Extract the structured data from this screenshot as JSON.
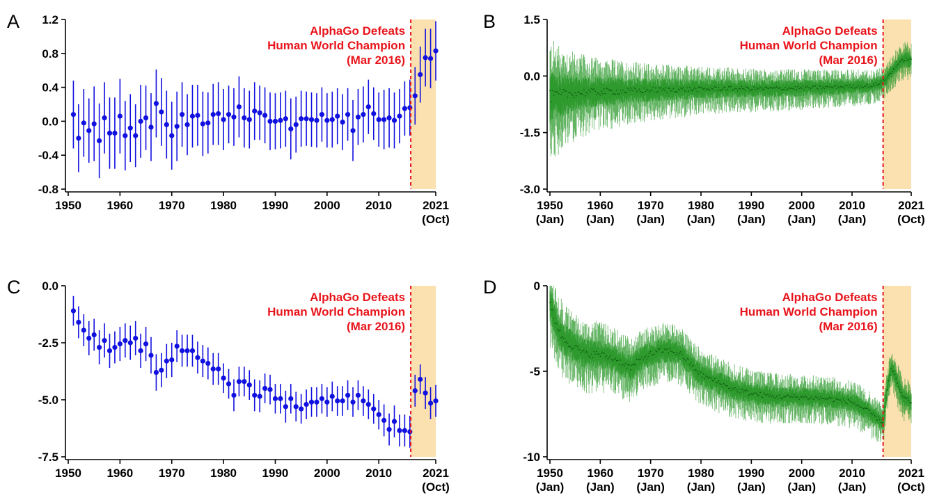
{
  "figure": {
    "colors": {
      "errorbar_blue": "#1010e0",
      "monthly_green": "#2e9a2e",
      "monthly_dark_green": "#0d5f0d",
      "event_line_red": "#e8141b",
      "shade_fill": "#fbe0b0",
      "annotation_red": "#e8141b"
    }
  },
  "chart_data": [
    {
      "panel": "A",
      "type": "scatter",
      "style": "points_with_error_bars",
      "annotation": [
        "AlphaGo Defeats",
        "Human World Champion",
        "(Mar 2016)"
      ],
      "event_x": 2016.17,
      "shaded_region": [
        2016.17,
        2021.0
      ],
      "xlim": [
        1950,
        2021.0
      ],
      "ylim": [
        -0.8,
        1.2
      ],
      "xticks": [
        1950,
        1960,
        1970,
        1980,
        1990,
        2000,
        2010,
        2021
      ],
      "xtick_labels": [
        [
          "1950"
        ],
        [
          "1960"
        ],
        [
          "1970"
        ],
        [
          "1980"
        ],
        [
          "1990"
        ],
        [
          "2000"
        ],
        [
          "2010"
        ],
        [
          "2021",
          "(Oct)"
        ]
      ],
      "yticks": [
        -0.8,
        -0.4,
        0.0,
        0.4,
        0.8,
        1.2
      ],
      "ytick_labels": [
        "-0.8",
        "-0.4",
        "0.0",
        "0.4",
        "0.8",
        "1.2"
      ],
      "x": [
        1951,
        1952,
        1953,
        1954,
        1955,
        1956,
        1957,
        1958,
        1959,
        1960,
        1961,
        1962,
        1963,
        1964,
        1965,
        1966,
        1967,
        1968,
        1969,
        1970,
        1971,
        1972,
        1973,
        1974,
        1975,
        1976,
        1977,
        1978,
        1979,
        1980,
        1981,
        1982,
        1983,
        1984,
        1985,
        1986,
        1987,
        1988,
        1989,
        1990,
        1991,
        1992,
        1993,
        1994,
        1995,
        1996,
        1997,
        1998,
        1999,
        2000,
        2001,
        2002,
        2003,
        2004,
        2005,
        2006,
        2007,
        2008,
        2009,
        2010,
        2011,
        2012,
        2013,
        2014,
        2015,
        2016,
        2017,
        2018,
        2019,
        2020,
        2021
      ],
      "y": [
        0.08,
        -0.2,
        -0.02,
        -0.11,
        -0.03,
        -0.23,
        0.04,
        -0.14,
        -0.14,
        0.06,
        -0.17,
        -0.08,
        -0.17,
        0.0,
        0.04,
        -0.07,
        0.21,
        0.11,
        -0.04,
        -0.17,
        -0.06,
        0.08,
        -0.04,
        0.06,
        0.07,
        -0.03,
        -0.02,
        0.08,
        0.09,
        0.02,
        0.08,
        0.05,
        0.17,
        0.04,
        0.02,
        0.12,
        0.1,
        0.07,
        0.0,
        0.0,
        0.01,
        0.03,
        -0.09,
        -0.04,
        0.03,
        0.03,
        0.02,
        0.01,
        0.08,
        0.01,
        0.02,
        0.06,
        -0.01,
        0.08,
        -0.11,
        0.05,
        0.08,
        0.17,
        0.09,
        0.02,
        0.02,
        0.04,
        0.01,
        0.06,
        0.15,
        0.16,
        0.3,
        0.55,
        0.75,
        0.74,
        0.83
      ],
      "err": [
        0.4,
        0.4,
        0.4,
        0.38,
        0.44,
        0.44,
        0.42,
        0.42,
        0.42,
        0.44,
        0.41,
        0.4,
        0.37,
        0.43,
        0.38,
        0.4,
        0.4,
        0.4,
        0.4,
        0.4,
        0.41,
        0.38,
        0.36,
        0.37,
        0.36,
        0.38,
        0.36,
        0.36,
        0.37,
        0.36,
        0.34,
        0.34,
        0.36,
        0.35,
        0.34,
        0.34,
        0.32,
        0.33,
        0.34,
        0.33,
        0.33,
        0.33,
        0.36,
        0.33,
        0.33,
        0.32,
        0.32,
        0.32,
        0.32,
        0.32,
        0.33,
        0.33,
        0.33,
        0.31,
        0.36,
        0.33,
        0.33,
        0.32,
        0.31,
        0.32,
        0.35,
        0.35,
        0.33,
        0.32,
        0.32,
        0.33,
        0.34,
        0.33,
        0.34,
        0.35,
        0.35
      ]
    },
    {
      "panel": "B",
      "type": "line",
      "style": "monthly_noisy_band",
      "annotation": [
        "AlphaGo Defeats",
        "Human World Champion",
        "(Mar 2016)"
      ],
      "event_x": 2016.17,
      "shaded_region": [
        2016.17,
        2021.75
      ],
      "xlim": [
        1950,
        2021.75
      ],
      "ylim": [
        -3.0,
        1.5
      ],
      "xticks": [
        1950,
        1960,
        1970,
        1980,
        1990,
        2000,
        2010,
        2021.75
      ],
      "xtick_labels": [
        [
          "1950",
          "(Jan)"
        ],
        [
          "1960",
          "(Jan)"
        ],
        [
          "1970",
          "(Jan)"
        ],
        [
          "1980",
          "(Jan)"
        ],
        [
          "1990",
          "(Jan)"
        ],
        [
          "2000",
          "(Jan)"
        ],
        [
          "2010",
          "(Jan)"
        ],
        [
          "2021",
          "(Oct)"
        ]
      ],
      "yticks": [
        -3.0,
        -1.5,
        0.0,
        1.5
      ],
      "ytick_labels": [
        "-3.0",
        "-1.5",
        "0.0",
        "1.5"
      ],
      "trend_x": [
        1950,
        1952,
        1955,
        1960,
        1965,
        1970,
        1975,
        1980,
        1985,
        1990,
        1995,
        2000,
        2005,
        2010,
        2014,
        2016.2,
        2017.5,
        2019,
        2020.5,
        2021.75
      ],
      "trend_y": [
        -0.55,
        -0.5,
        -0.45,
        -0.42,
        -0.4,
        -0.38,
        -0.36,
        -0.35,
        -0.33,
        -0.34,
        -0.33,
        -0.32,
        -0.3,
        -0.28,
        -0.26,
        -0.15,
        0.05,
        0.3,
        0.45,
        0.42
      ],
      "spread_x": [
        1950,
        1955,
        1960,
        1970,
        1980,
        1990,
        2000,
        2010,
        2016,
        2021.75
      ],
      "spread_y": [
        1.3,
        0.9,
        0.75,
        0.6,
        0.5,
        0.45,
        0.42,
        0.38,
        0.35,
        0.4
      ]
    },
    {
      "panel": "C",
      "type": "scatter",
      "style": "points_with_error_bars",
      "annotation": [
        "AlphaGo Defeats",
        "Human World Champion",
        "(Mar 2016)"
      ],
      "event_x": 2016.17,
      "shaded_region": [
        2016.17,
        2021.0
      ],
      "xlim": [
        1950,
        2021.0
      ],
      "ylim": [
        -7.5,
        0.0
      ],
      "xticks": [
        1950,
        1960,
        1970,
        1980,
        1990,
        2000,
        2010,
        2021
      ],
      "xtick_labels": [
        [
          "1950"
        ],
        [
          "1960"
        ],
        [
          "1970"
        ],
        [
          "1980"
        ],
        [
          "1990"
        ],
        [
          "2000"
        ],
        [
          "2010"
        ],
        [
          "2021",
          "(Oct)"
        ]
      ],
      "yticks": [
        -7.5,
        -5.0,
        -2.5,
        0.0
      ],
      "ytick_labels": [
        "-7.5",
        "-5.0",
        "-2.5",
        "0.0"
      ],
      "x": [
        1951,
        1952,
        1953,
        1954,
        1955,
        1956,
        1957,
        1958,
        1959,
        1960,
        1961,
        1962,
        1963,
        1964,
        1965,
        1966,
        1967,
        1968,
        1969,
        1970,
        1971,
        1972,
        1973,
        1974,
        1975,
        1976,
        1977,
        1978,
        1979,
        1980,
        1981,
        1982,
        1983,
        1984,
        1985,
        1986,
        1987,
        1988,
        1989,
        1990,
        1991,
        1992,
        1993,
        1994,
        1995,
        1996,
        1997,
        1998,
        1999,
        2000,
        2001,
        2002,
        2003,
        2004,
        2005,
        2006,
        2007,
        2008,
        2009,
        2010,
        2011,
        2012,
        2013,
        2014,
        2015,
        2016,
        2017,
        2018,
        2019,
        2020,
        2021
      ],
      "y": [
        -1.1,
        -1.6,
        -1.95,
        -2.3,
        -2.15,
        -2.7,
        -2.4,
        -2.85,
        -2.7,
        -2.55,
        -2.4,
        -2.5,
        -2.3,
        -2.85,
        -2.55,
        -3.05,
        -3.8,
        -3.7,
        -3.3,
        -3.25,
        -2.65,
        -2.85,
        -2.85,
        -2.85,
        -3.15,
        -3.3,
        -3.4,
        -3.65,
        -3.65,
        -4.05,
        -4.3,
        -4.8,
        -4.2,
        -4.2,
        -4.35,
        -4.8,
        -4.85,
        -4.5,
        -4.55,
        -4.95,
        -4.95,
        -5.3,
        -4.95,
        -5.3,
        -5.4,
        -5.2,
        -5.1,
        -5.1,
        -4.95,
        -5.1,
        -4.85,
        -5.05,
        -5.05,
        -4.8,
        -5.1,
        -4.8,
        -5.05,
        -5.2,
        -5.4,
        -5.65,
        -5.9,
        -6.3,
        -5.95,
        -6.35,
        -6.35,
        -6.4,
        -4.6,
        -4.1,
        -4.7,
        -5.15,
        -5.05
      ],
      "err": [
        0.65,
        0.7,
        0.7,
        0.75,
        0.7,
        0.75,
        0.75,
        0.75,
        0.7,
        0.75,
        0.75,
        0.75,
        0.75,
        0.75,
        0.75,
        0.8,
        0.8,
        0.75,
        0.75,
        0.75,
        0.7,
        0.7,
        0.7,
        0.7,
        0.7,
        0.7,
        0.7,
        0.7,
        0.7,
        0.65,
        0.65,
        0.7,
        0.65,
        0.65,
        0.65,
        0.7,
        0.7,
        0.65,
        0.65,
        0.65,
        0.65,
        0.7,
        0.65,
        0.65,
        0.65,
        0.65,
        0.65,
        0.65,
        0.65,
        0.65,
        0.65,
        0.65,
        0.65,
        0.65,
        0.65,
        0.65,
        0.65,
        0.65,
        0.65,
        0.65,
        0.7,
        0.7,
        0.7,
        0.7,
        0.7,
        0.7,
        0.7,
        0.65,
        0.7,
        0.7,
        0.7
      ]
    },
    {
      "panel": "D",
      "type": "line",
      "style": "monthly_noisy_band",
      "annotation": [
        "AlphaGo Defeats",
        "Human World Champion",
        "(Mar 2016)"
      ],
      "event_x": 2016.17,
      "shaded_region": [
        2016.17,
        2021.75
      ],
      "xlim": [
        1950,
        2021.75
      ],
      "ylim": [
        -10,
        0
      ],
      "xticks": [
        1950,
        1960,
        1970,
        1980,
        1990,
        2000,
        2010,
        2021.75
      ],
      "xtick_labels": [
        [
          "1950",
          "(Jan)"
        ],
        [
          "1960",
          "(Jan)"
        ],
        [
          "1970",
          "(Jan)"
        ],
        [
          "1980",
          "(Jan)"
        ],
        [
          "1990",
          "(Jan)"
        ],
        [
          "2000",
          "(Jan)"
        ],
        [
          "2010",
          "(Jan)"
        ],
        [
          "2021",
          "(Oct)"
        ]
      ],
      "yticks": [
        -10,
        -5,
        0
      ],
      "ytick_labels": [
        "-10",
        "-5",
        "0"
      ],
      "trend_x": [
        1950,
        1951,
        1952,
        1953,
        1955,
        1957,
        1960,
        1963,
        1966,
        1968,
        1970,
        1972,
        1974,
        1976,
        1978,
        1980,
        1983,
        1986,
        1990,
        1995,
        2000,
        2005,
        2010,
        2013,
        2016.2,
        2017,
        2017.8,
        2018.8,
        2020,
        2021.75
      ],
      "trend_y": [
        -1.0,
        -2.0,
        -2.8,
        -3.2,
        -3.6,
        -4.0,
        -4.0,
        -4.3,
        -4.8,
        -4.3,
        -4.0,
        -3.8,
        -3.8,
        -4.0,
        -4.6,
        -5.2,
        -5.6,
        -6.0,
        -6.3,
        -6.5,
        -6.5,
        -6.6,
        -6.8,
        -7.3,
        -8.0,
        -6.0,
        -4.8,
        -5.5,
        -6.5,
        -6.8
      ],
      "spread_x": [
        1950,
        1955,
        1960,
        1970,
        1980,
        1990,
        2000,
        2010,
        2016,
        2021.75
      ],
      "spread_y": [
        1.9,
        1.7,
        1.6,
        1.4,
        1.3,
        1.2,
        1.1,
        1.1,
        1.0,
        1.0
      ]
    }
  ]
}
